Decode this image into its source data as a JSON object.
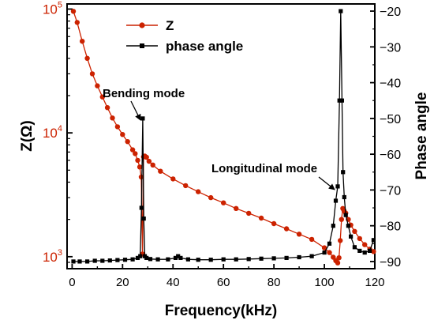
{
  "chart_data": {
    "type": "line",
    "xlabel": "Frequency(kHz)",
    "ylabel_left": "Z(Ω)",
    "ylabel_right": "Phase angle",
    "left_axis_color": "#cc2200",
    "xlim": [
      -2,
      120
    ],
    "xticks": [
      "0",
      "20",
      "40",
      "60",
      "80",
      "100",
      "120"
    ],
    "ylim_left": [
      800,
      110000
    ],
    "yscale_left": "log",
    "yticks_left": [
      {
        "value": 1000,
        "base": "10",
        "exp": "3"
      },
      {
        "value": 10000,
        "base": "10",
        "exp": "4"
      },
      {
        "value": 100000,
        "base": "10",
        "exp": "5"
      }
    ],
    "ylim_right": [
      -92,
      -18
    ],
    "yticks_right": [
      "-90",
      "-80",
      "-70",
      "-60",
      "-50",
      "-40",
      "-30",
      "-20"
    ],
    "legend_position": "top-left",
    "series": [
      {
        "name": "Z",
        "axis": "left",
        "color": "#cc2200",
        "marker": "circle",
        "x": [
          0.5,
          2,
          4,
          6,
          8,
          10,
          12,
          14,
          16,
          18,
          20,
          22,
          24,
          25,
          26,
          26.8,
          27.4,
          27.9,
          28.3,
          28.8,
          29.5,
          30.5,
          32,
          35,
          40,
          45,
          50,
          55,
          60,
          65,
          70,
          75,
          80,
          85,
          90,
          95,
          100,
          102,
          103.5,
          104.5,
          105.3,
          105.8,
          106.3,
          106.8,
          107.3,
          107.8,
          108.5,
          109.5,
          110.5,
          112,
          114,
          116,
          118,
          119.5
        ],
        "y": [
          96000,
          78000,
          55000,
          40000,
          30000,
          24000,
          19500,
          16000,
          13200,
          11200,
          9700,
          8500,
          7300,
          6800,
          6000,
          5300,
          4400,
          1050,
          6400,
          6500,
          6350,
          5900,
          5500,
          4900,
          4250,
          3750,
          3350,
          3000,
          2720,
          2450,
          2240,
          2050,
          1850,
          1680,
          1520,
          1380,
          1180,
          1080,
          990,
          930,
          890,
          980,
          1350,
          2000,
          2450,
          2350,
          2250,
          2000,
          1800,
          1600,
          1400,
          1250,
          1150,
          1100
        ]
      },
      {
        "name": "phase angle",
        "axis": "right",
        "color": "#000000",
        "marker": "square",
        "x": [
          0.5,
          3,
          6,
          9,
          12,
          15,
          18,
          21,
          24,
          26,
          27,
          27.5,
          28,
          28.4,
          28.8,
          29.5,
          31,
          34,
          38,
          41,
          42,
          43,
          46,
          50,
          55,
          60,
          65,
          70,
          75,
          80,
          85,
          90,
          95,
          100,
          102,
          103.5,
          104.5,
          105.3,
          106,
          106.5,
          107,
          107.4,
          107.9,
          108.5,
          109.5,
          110.5,
          112,
          114,
          116,
          118,
          119.5
        ],
        "y": [
          -90,
          -90,
          -90,
          -89.8,
          -89.8,
          -89.7,
          -89.6,
          -89.5,
          -89.4,
          -89,
          -88.5,
          -75,
          -50,
          -78,
          -88.5,
          -89,
          -89.3,
          -89.4,
          -89.4,
          -89,
          -88.5,
          -89,
          -89.4,
          -89.5,
          -89.5,
          -89.4,
          -89.4,
          -89.3,
          -89.2,
          -89.1,
          -89,
          -88.8,
          -88.5,
          -87.5,
          -85,
          -80,
          -73,
          -69,
          -45,
          -20,
          -45,
          -65,
          -72,
          -77,
          -80,
          -83,
          -86,
          -87,
          -87.5,
          -87,
          -84
        ]
      }
    ],
    "annotations": [
      {
        "text": "Bending mode",
        "target_x": 28,
        "target_y_right": -50
      },
      {
        "text": "Longitudinal mode",
        "target_x": 105.3,
        "target_y_right": -69
      }
    ]
  }
}
